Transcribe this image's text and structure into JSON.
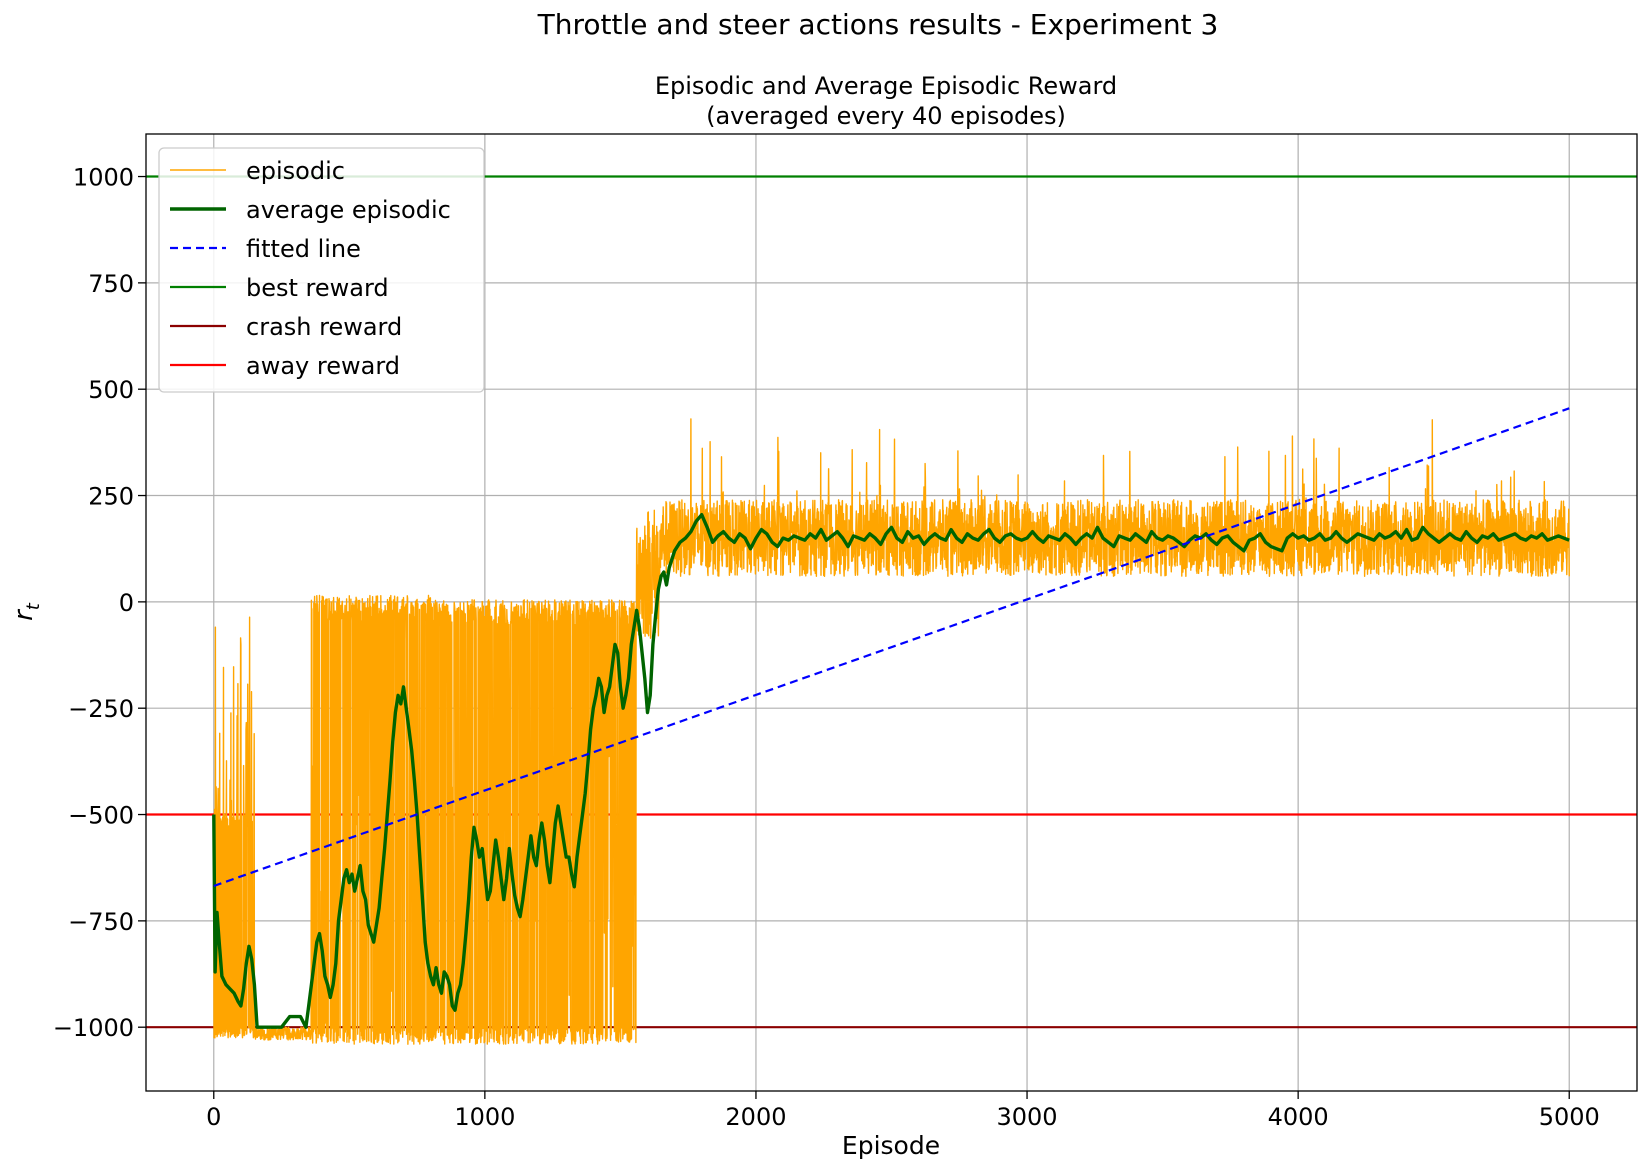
{
  "figure": {
    "suptitle": "Throttle and steer actions results - Experiment 3"
  },
  "chart_data": {
    "type": "line",
    "title": "Episodic and Average Episodic Reward\n(averaged every 40 episodes)",
    "title_lines": [
      "Episodic and Average Episodic Reward",
      "(averaged every 40 episodes)"
    ],
    "xlabel": "Episode",
    "ylabel": "r_t",
    "ylabel_main": "r",
    "ylabel_sub": "t",
    "xlim": [
      -250,
      5250
    ],
    "ylim": [
      -1150,
      1100
    ],
    "xticks": [
      0,
      1000,
      2000,
      3000,
      4000,
      5000
    ],
    "xtick_labels": [
      "0",
      "1000",
      "2000",
      "3000",
      "4000",
      "5000"
    ],
    "yticks": [
      1000,
      750,
      500,
      250,
      0,
      -250,
      -500,
      -750,
      -1000
    ],
    "ytick_labels": [
      "1000",
      "750",
      "500",
      "250",
      "0",
      "−250",
      "−500",
      "−750",
      "−1000"
    ],
    "grid": true,
    "legend_position": "upper-left",
    "legend": [
      {
        "label": "episodic",
        "color": "#ffa500",
        "style": "solid",
        "width": "thin"
      },
      {
        "label": "average episodic",
        "color": "#006400",
        "style": "solid",
        "width": "thick"
      },
      {
        "label": "fitted line",
        "color": "#0000ff",
        "style": "dashed",
        "width": "normal"
      },
      {
        "label": "best reward",
        "color": "#008000",
        "style": "solid",
        "width": "normal"
      },
      {
        "label": "crash reward",
        "color": "#8b0000",
        "style": "solid",
        "width": "normal"
      },
      {
        "label": "away reward",
        "color": "#ff0000",
        "style": "solid",
        "width": "normal"
      }
    ],
    "hlines": [
      {
        "name": "best reward",
        "y": 1000,
        "color": "#008000"
      },
      {
        "name": "away reward",
        "y": -500,
        "color": "#ff0000"
      },
      {
        "name": "crash reward",
        "y": -1000,
        "color": "#8b0000"
      }
    ],
    "fitted_line": {
      "name": "fitted line",
      "x": [
        0,
        5000
      ],
      "y": [
        -668,
        455
      ],
      "color": "#0000ff"
    },
    "average_episodic": {
      "name": "average episodic",
      "color": "#006400",
      "x": [
        0,
        5,
        12,
        20,
        30,
        45,
        60,
        75,
        90,
        100,
        110,
        120,
        130,
        140,
        150,
        160,
        250,
        280,
        320,
        340,
        350,
        360,
        370,
        380,
        390,
        400,
        410,
        420,
        430,
        440,
        450,
        460,
        470,
        480,
        490,
        500,
        510,
        520,
        530,
        540,
        550,
        560,
        570,
        580,
        590,
        600,
        610,
        620,
        630,
        640,
        650,
        660,
        670,
        680,
        690,
        700,
        710,
        720,
        730,
        740,
        750,
        760,
        770,
        780,
        790,
        800,
        810,
        820,
        830,
        840,
        850,
        860,
        870,
        880,
        890,
        900,
        910,
        920,
        930,
        940,
        950,
        960,
        970,
        980,
        990,
        1000,
        1010,
        1020,
        1030,
        1040,
        1050,
        1060,
        1070,
        1080,
        1090,
        1100,
        1110,
        1120,
        1130,
        1140,
        1150,
        1160,
        1170,
        1180,
        1190,
        1200,
        1210,
        1220,
        1230,
        1240,
        1250,
        1260,
        1270,
        1280,
        1290,
        1300,
        1310,
        1320,
        1330,
        1340,
        1350,
        1360,
        1370,
        1380,
        1390,
        1400,
        1410,
        1420,
        1430,
        1440,
        1450,
        1460,
        1470,
        1480,
        1490,
        1500,
        1510,
        1520,
        1530,
        1540,
        1550,
        1560,
        1570,
        1580,
        1590,
        1600,
        1610,
        1620,
        1630,
        1640,
        1650,
        1660,
        1670,
        1680,
        1690,
        1700,
        1720,
        1740,
        1760,
        1780,
        1800,
        1820,
        1840,
        1860,
        1880,
        1900,
        1920,
        1940,
        1960,
        1980,
        2000,
        2020,
        2040,
        2060,
        2080,
        2100,
        2120,
        2140,
        2160,
        2180,
        2200,
        2220,
        2240,
        2260,
        2280,
        2300,
        2320,
        2340,
        2360,
        2380,
        2400,
        2420,
        2440,
        2460,
        2480,
        2500,
        2520,
        2540,
        2560,
        2580,
        2600,
        2620,
        2640,
        2660,
        2680,
        2700,
        2720,
        2740,
        2760,
        2780,
        2800,
        2820,
        2840,
        2860,
        2880,
        2900,
        2920,
        2940,
        2960,
        2980,
        3000,
        3020,
        3040,
        3060,
        3080,
        3100,
        3120,
        3140,
        3160,
        3180,
        3200,
        3220,
        3240,
        3260,
        3280,
        3300,
        3320,
        3340,
        3360,
        3380,
        3400,
        3420,
        3440,
        3460,
        3480,
        3500,
        3520,
        3540,
        3560,
        3580,
        3600,
        3620,
        3640,
        3660,
        3680,
        3700,
        3720,
        3740,
        3760,
        3780,
        3800,
        3820,
        3840,
        3860,
        3880,
        3900,
        3920,
        3940,
        3960,
        3980,
        4000,
        4020,
        4040,
        4060,
        4080,
        4100,
        4120,
        4140,
        4160,
        4180,
        4200,
        4220,
        4240,
        4260,
        4280,
        4300,
        4320,
        4340,
        4360,
        4380,
        4400,
        4420,
        4440,
        4460,
        4480,
        4500,
        4520,
        4540,
        4560,
        4580,
        4600,
        4620,
        4640,
        4660,
        4680,
        4700,
        4720,
        4740,
        4760,
        4780,
        4800,
        4820,
        4840,
        4860,
        4880,
        4900,
        4920,
        4940,
        4960,
        4980,
        5000
      ],
      "y": [
        -500,
        -870,
        -730,
        -800,
        -880,
        -900,
        -910,
        -920,
        -940,
        -950,
        -910,
        -850,
        -810,
        -840,
        -900,
        -1000,
        -1000,
        -975,
        -975,
        -1000,
        -950,
        -900,
        -850,
        -800,
        -780,
        -820,
        -880,
        -900,
        -930,
        -900,
        -850,
        -750,
        -700,
        -650,
        -630,
        -660,
        -640,
        -680,
        -650,
        -620,
        -680,
        -700,
        -760,
        -780,
        -800,
        -760,
        -720,
        -650,
        -580,
        -500,
        -420,
        -330,
        -260,
        -220,
        -240,
        -200,
        -250,
        -300,
        -350,
        -420,
        -500,
        -600,
        -700,
        -800,
        -850,
        -880,
        -900,
        -860,
        -900,
        -920,
        -870,
        -880,
        -900,
        -950,
        -960,
        -920,
        -900,
        -850,
        -780,
        -700,
        -600,
        -530,
        -560,
        -600,
        -580,
        -640,
        -700,
        -680,
        -620,
        -560,
        -600,
        -650,
        -700,
        -650,
        -580,
        -640,
        -690,
        -720,
        -740,
        -700,
        -650,
        -600,
        -550,
        -600,
        -620,
        -560,
        -520,
        -560,
        -620,
        -660,
        -590,
        -520,
        -480,
        -520,
        -560,
        -600,
        -600,
        -640,
        -670,
        -600,
        -550,
        -500,
        -450,
        -380,
        -300,
        -250,
        -220,
        -180,
        -200,
        -260,
        -220,
        -200,
        -150,
        -100,
        -120,
        -200,
        -250,
        -220,
        -180,
        -100,
        -60,
        -20,
        -60,
        -120,
        -180,
        -260,
        -220,
        -100,
        -30,
        30,
        60,
        70,
        40,
        80,
        100,
        120,
        140,
        150,
        165,
        190,
        205,
        175,
        140,
        155,
        165,
        150,
        140,
        160,
        150,
        125,
        150,
        170,
        160,
        140,
        130,
        150,
        145,
        155,
        150,
        145,
        160,
        150,
        170,
        145,
        155,
        165,
        150,
        130,
        155,
        150,
        145,
        160,
        150,
        135,
        160,
        175,
        150,
        140,
        165,
        150,
        155,
        135,
        150,
        160,
        150,
        145,
        170,
        150,
        140,
        160,
        150,
        145,
        160,
        170,
        150,
        140,
        155,
        160,
        150,
        145,
        150,
        165,
        150,
        140,
        155,
        150,
        145,
        160,
        150,
        135,
        150,
        160,
        150,
        175,
        150,
        140,
        130,
        155,
        150,
        145,
        160,
        150,
        140,
        165,
        150,
        145,
        155,
        150,
        140,
        130,
        145,
        155,
        150,
        160,
        145,
        135,
        150,
        155,
        140,
        130,
        120,
        145,
        150,
        160,
        140,
        130,
        125,
        120,
        150,
        160,
        150,
        155,
        145,
        150,
        160,
        145,
        150,
        165,
        150,
        140,
        150,
        160,
        155,
        150,
        145,
        160,
        150,
        155,
        165,
        150,
        170,
        145,
        150,
        175,
        160,
        150,
        140,
        150,
        160,
        150,
        145,
        165,
        150,
        140,
        155,
        150,
        160,
        145,
        150,
        155,
        160,
        150,
        145,
        155,
        150,
        160,
        145,
        150,
        155,
        150,
        145
      ]
    },
    "episodic": {
      "name": "episodic",
      "color": "#ffa500",
      "x_range": [
        0,
        5000
      ],
      "phases": [
        {
          "x": [
            0,
            150
          ],
          "low": -1000,
          "high": -500,
          "note": "mostly crash with spikes to -500 and up to -30"
        },
        {
          "x": [
            150,
            360
          ],
          "low": -1030,
          "high": -1000
        },
        {
          "x": [
            360,
            1560
          ],
          "low": -1040,
          "high": 20
        },
        {
          "x": [
            1560,
            1650
          ],
          "low": -90,
          "high": 230
        },
        {
          "x": [
            1650,
            5000
          ],
          "low": 10,
          "high": 380
        }
      ]
    }
  }
}
